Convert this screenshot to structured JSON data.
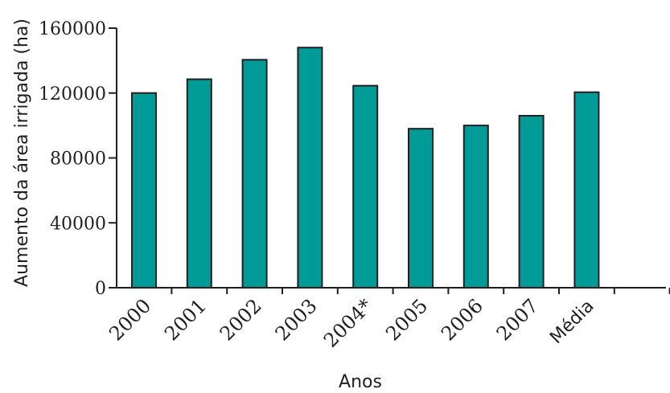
{
  "chart_data": {
    "type": "bar",
    "categories": [
      "2000",
      "2001",
      "2002",
      "2003",
      "2004*",
      "2005",
      "2006",
      "2007",
      "Média"
    ],
    "values": [
      120000,
      128500,
      140500,
      148000,
      124500,
      98000,
      100000,
      106000,
      120500
    ],
    "xlabel": "Anos",
    "ylabel": "Aumento da área irrigada (ha)",
    "ylim": [
      0,
      160000
    ],
    "yticks": [
      0,
      40000,
      80000,
      120000,
      160000
    ],
    "ytick_labels": [
      "0",
      "40000",
      "80000",
      "120000",
      "160000"
    ],
    "grid": false,
    "legend": "none",
    "bar_color": "#009b96",
    "edge_color": "#231f20"
  }
}
